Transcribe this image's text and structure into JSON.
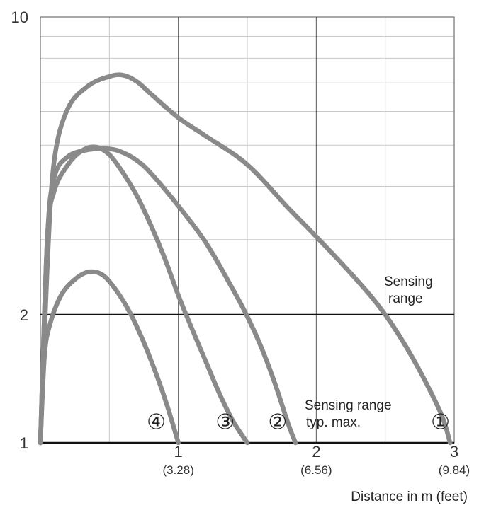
{
  "chart_data": {
    "type": "line",
    "title": "",
    "xlabel": "Distance in m (feet)",
    "ylabel": "",
    "xlim": [
      0,
      3
    ],
    "ylim": [
      1,
      10
    ],
    "y_scale": "log",
    "grid": true,
    "x_ticks": [
      {
        "value": 1,
        "label": "1",
        "sublabel": "(3.28)"
      },
      {
        "value": 2,
        "label": "2",
        "sublabel": "(6.56)"
      },
      {
        "value": 3,
        "label": "3",
        "sublabel": "(9.84)"
      }
    ],
    "y_ticks": [
      {
        "value": 1,
        "label": "1"
      },
      {
        "value": 2,
        "label": "2"
      },
      {
        "value": 10,
        "label": "10"
      }
    ],
    "reference_lines": [
      {
        "y": 2,
        "label_line1": "Sensing",
        "label_line2": "range"
      }
    ],
    "annotations": [
      {
        "label_line1": "Sensing range",
        "label_line2": "typ. max."
      }
    ],
    "series": [
      {
        "marker": "①",
        "x": [
          0,
          0.05,
          0.1,
          0.2,
          0.35,
          0.5,
          0.6,
          0.7,
          0.8,
          1.0,
          1.2,
          1.5,
          1.8,
          2.0,
          2.3,
          2.5,
          2.7,
          2.9,
          2.97
        ],
        "y": [
          1,
          2.6,
          4.6,
          6.1,
          6.9,
          7.25,
          7.3,
          7.05,
          6.6,
          5.8,
          5.25,
          4.5,
          3.55,
          3.05,
          2.4,
          2.0,
          1.58,
          1.18,
          1.0
        ]
      },
      {
        "marker": "②",
        "x": [
          0,
          0.05,
          0.1,
          0.2,
          0.35,
          0.5,
          0.6,
          0.7,
          0.8,
          1.0,
          1.2,
          1.4,
          1.5,
          1.6,
          1.7,
          1.8,
          1.85
        ],
        "y": [
          1,
          3.0,
          4.2,
          4.7,
          4.88,
          4.9,
          4.8,
          4.6,
          4.3,
          3.6,
          2.95,
          2.28,
          1.98,
          1.68,
          1.38,
          1.1,
          1.0
        ]
      },
      {
        "marker": "③",
        "x": [
          0,
          0.05,
          0.1,
          0.2,
          0.3,
          0.4,
          0.5,
          0.6,
          0.7,
          0.8,
          0.9,
          1.0,
          1.1,
          1.2,
          1.3,
          1.4,
          1.5
        ],
        "y": [
          1,
          3.0,
          3.9,
          4.5,
          4.85,
          4.95,
          4.75,
          4.3,
          3.8,
          3.25,
          2.72,
          2.22,
          1.85,
          1.55,
          1.3,
          1.12,
          1.0
        ]
      },
      {
        "marker": "④",
        "x": [
          0,
          0.03,
          0.07,
          0.15,
          0.25,
          0.35,
          0.45,
          0.55,
          0.65,
          0.75,
          0.85,
          0.92,
          1.0
        ],
        "y": [
          1,
          1.6,
          1.9,
          2.22,
          2.42,
          2.52,
          2.48,
          2.28,
          2.02,
          1.72,
          1.42,
          1.22,
          1.0
        ]
      }
    ]
  }
}
